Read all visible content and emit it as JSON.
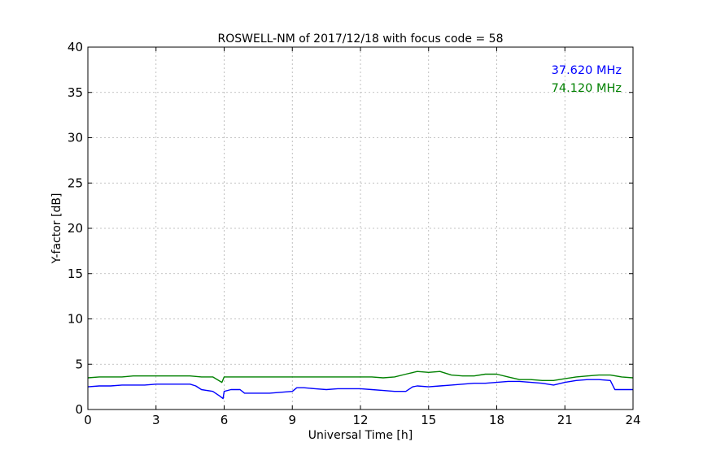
{
  "chart_data": {
    "type": "line",
    "title": "ROSWELL-NM of 2017/12/18 with focus code = 58",
    "xlabel": "Universal Time [h]",
    "ylabel": "Y-factor [dB]",
    "xlim": [
      0,
      24
    ],
    "ylim": [
      0,
      40
    ],
    "xticks": [
      0,
      3,
      6,
      9,
      12,
      15,
      18,
      21,
      24
    ],
    "yticks": [
      0,
      5,
      10,
      15,
      20,
      25,
      30,
      35,
      40
    ],
    "grid": true,
    "legend_placement": "top-right",
    "series": [
      {
        "name": "37.620 MHz",
        "color": "#0000ff",
        "points": [
          [
            0.0,
            2.5
          ],
          [
            0.5,
            2.6
          ],
          [
            1.0,
            2.6
          ],
          [
            1.5,
            2.7
          ],
          [
            2.0,
            2.7
          ],
          [
            2.5,
            2.7
          ],
          [
            3.0,
            2.8
          ],
          [
            3.5,
            2.8
          ],
          [
            4.0,
            2.8
          ],
          [
            4.5,
            2.8
          ],
          [
            4.75,
            2.6
          ],
          [
            5.0,
            2.2
          ],
          [
            5.5,
            2.0
          ],
          [
            5.8,
            1.5
          ],
          [
            5.95,
            1.2
          ],
          [
            6.0,
            2.0
          ],
          [
            6.3,
            2.2
          ],
          [
            6.7,
            2.2
          ],
          [
            6.9,
            1.8
          ],
          [
            7.5,
            1.8
          ],
          [
            8.0,
            1.8
          ],
          [
            8.5,
            1.9
          ],
          [
            9.0,
            2.0
          ],
          [
            9.2,
            2.4
          ],
          [
            9.5,
            2.4
          ],
          [
            10.0,
            2.3
          ],
          [
            10.5,
            2.2
          ],
          [
            11.0,
            2.3
          ],
          [
            11.5,
            2.3
          ],
          [
            12.0,
            2.3
          ],
          [
            12.5,
            2.2
          ],
          [
            13.0,
            2.1
          ],
          [
            13.5,
            2.0
          ],
          [
            14.0,
            2.0
          ],
          [
            14.3,
            2.5
          ],
          [
            14.5,
            2.6
          ],
          [
            15.0,
            2.5
          ],
          [
            15.5,
            2.6
          ],
          [
            16.0,
            2.7
          ],
          [
            16.5,
            2.8
          ],
          [
            17.0,
            2.9
          ],
          [
            17.5,
            2.9
          ],
          [
            18.0,
            3.0
          ],
          [
            18.5,
            3.1
          ],
          [
            19.0,
            3.1
          ],
          [
            19.5,
            3.0
          ],
          [
            20.0,
            2.9
          ],
          [
            20.5,
            2.7
          ],
          [
            21.0,
            3.0
          ],
          [
            21.5,
            3.2
          ],
          [
            22.0,
            3.3
          ],
          [
            22.5,
            3.3
          ],
          [
            23.0,
            3.2
          ],
          [
            23.2,
            2.2
          ],
          [
            23.6,
            2.2
          ],
          [
            24.0,
            2.2
          ]
        ]
      },
      {
        "name": "74.120 MHz",
        "color": "#008000",
        "points": [
          [
            0.0,
            3.5
          ],
          [
            0.5,
            3.6
          ],
          [
            1.0,
            3.6
          ],
          [
            1.5,
            3.6
          ],
          [
            2.0,
            3.7
          ],
          [
            2.5,
            3.7
          ],
          [
            3.0,
            3.7
          ],
          [
            3.5,
            3.7
          ],
          [
            4.0,
            3.7
          ],
          [
            4.5,
            3.7
          ],
          [
            5.0,
            3.6
          ],
          [
            5.5,
            3.6
          ],
          [
            5.9,
            3.0
          ],
          [
            6.0,
            3.6
          ],
          [
            6.5,
            3.6
          ],
          [
            7.0,
            3.6
          ],
          [
            7.5,
            3.6
          ],
          [
            8.0,
            3.6
          ],
          [
            8.5,
            3.6
          ],
          [
            9.0,
            3.6
          ],
          [
            9.5,
            3.6
          ],
          [
            10.0,
            3.6
          ],
          [
            10.5,
            3.6
          ],
          [
            11.0,
            3.6
          ],
          [
            11.5,
            3.6
          ],
          [
            12.0,
            3.6
          ],
          [
            12.5,
            3.6
          ],
          [
            13.0,
            3.5
          ],
          [
            13.5,
            3.6
          ],
          [
            14.0,
            3.9
          ],
          [
            14.5,
            4.2
          ],
          [
            15.0,
            4.1
          ],
          [
            15.5,
            4.2
          ],
          [
            16.0,
            3.8
          ],
          [
            16.5,
            3.7
          ],
          [
            17.0,
            3.7
          ],
          [
            17.5,
            3.9
          ],
          [
            18.0,
            3.9
          ],
          [
            18.5,
            3.6
          ],
          [
            19.0,
            3.3
          ],
          [
            19.5,
            3.3
          ],
          [
            20.0,
            3.2
          ],
          [
            20.5,
            3.2
          ],
          [
            21.0,
            3.4
          ],
          [
            21.5,
            3.6
          ],
          [
            22.0,
            3.7
          ],
          [
            22.5,
            3.8
          ],
          [
            23.0,
            3.8
          ],
          [
            23.5,
            3.6
          ],
          [
            24.0,
            3.5
          ]
        ]
      }
    ]
  }
}
